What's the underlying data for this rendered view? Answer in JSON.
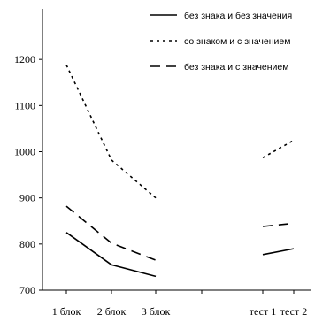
{
  "chart_data": {
    "type": "line",
    "title": "",
    "xlabel": "",
    "ylabel": "",
    "categories": [
      "1 блок",
      "2 блок",
      "3 блок",
      "",
      "тест 1",
      "тест 2"
    ],
    "ylim": [
      700,
      1300
    ],
    "yticks": [
      700,
      800,
      900,
      1000,
      1100,
      1200
    ],
    "grid": false,
    "legend_position": "top-right",
    "series": [
      {
        "name": "без знака и без значения",
        "style": "solid",
        "color": "#000000",
        "segments": [
          {
            "x": [
              "1 блок",
              "2 блок",
              "3 блок"
            ],
            "y": [
              825,
              755,
              730
            ]
          },
          {
            "x": [
              "тест 1",
              "тест 2"
            ],
            "y": [
              777,
              790
            ]
          }
        ]
      },
      {
        "name": "со знаком и с значением",
        "style": "dotted",
        "color": "#000000",
        "segments": [
          {
            "x": [
              "1 блок",
              "2 блок",
              "3 блок"
            ],
            "y": [
              1188,
              982,
              900
            ]
          },
          {
            "x": [
              "тест 1",
              "тест 2"
            ],
            "y": [
              987,
              1025
            ]
          }
        ]
      },
      {
        "name": "без знака и с значением",
        "style": "dashed",
        "color": "#000000",
        "segments": [
          {
            "x": [
              "1 блок",
              "2 блок",
              "3 блок"
            ],
            "y": [
              882,
              802,
              765
            ]
          },
          {
            "x": [
              "тест 1",
              "тест 2"
            ],
            "y": [
              838,
              845
            ]
          }
        ]
      }
    ]
  }
}
